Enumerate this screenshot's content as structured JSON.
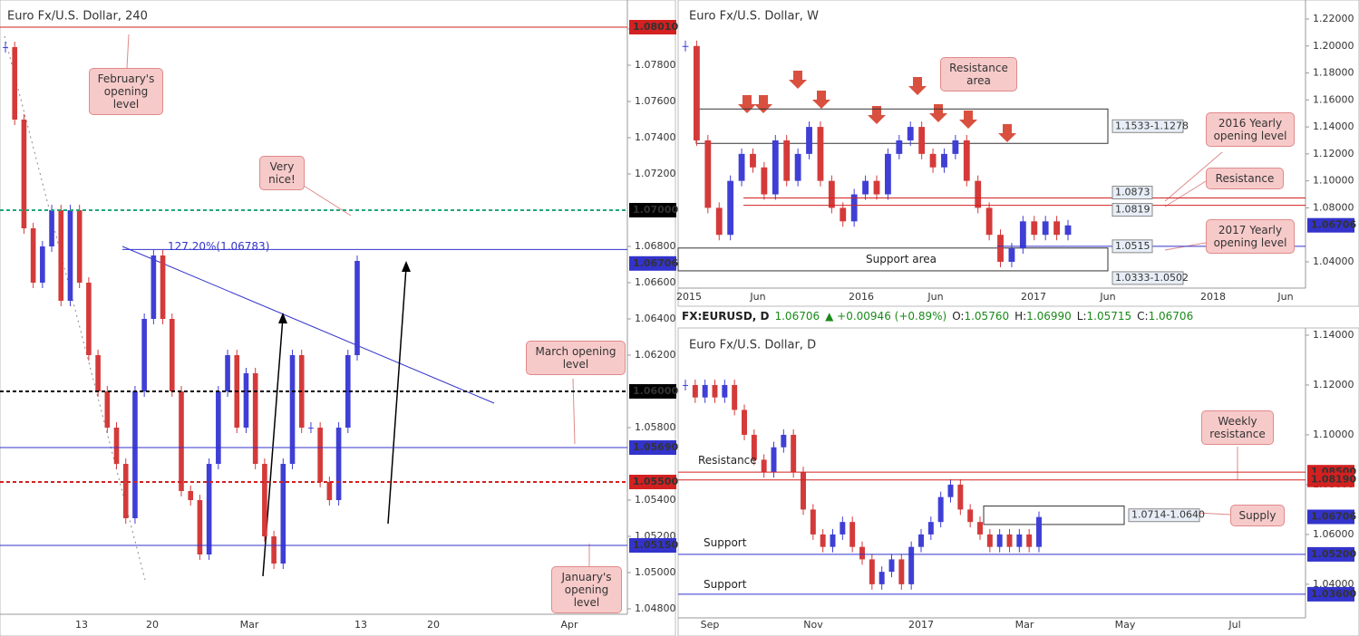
{
  "chart_data": [
    {
      "type": "candlestick",
      "title": "Euro Fx/U.S. Dollar, 240",
      "ylim": [
        1.0477,
        1.0816
      ],
      "yticks": [
        {
          "value": 1.08,
          "label": "1.08000"
        },
        {
          "value": 1.078,
          "label": "1.07800"
        },
        {
          "value": 1.076,
          "label": "1.07600"
        },
        {
          "value": 1.074,
          "label": "1.07400"
        },
        {
          "value": 1.072,
          "label": "1.07200"
        },
        {
          "value": 1.068,
          "label": "1.06800"
        },
        {
          "value": 1.066,
          "label": "1.06600"
        },
        {
          "value": 1.064,
          "label": "1.06400"
        },
        {
          "value": 1.062,
          "label": "1.06200"
        },
        {
          "value": 1.058,
          "label": "1.05800"
        },
        {
          "value": 1.054,
          "label": "1.05400"
        },
        {
          "value": 1.052,
          "label": "1.05200"
        },
        {
          "value": 1.05,
          "label": "1.05000"
        },
        {
          "value": 1.048,
          "label": "1.04800"
        }
      ],
      "xticks": [
        "13",
        "20",
        "Mar",
        "13",
        "20",
        "Apr"
      ],
      "up_color": "#3f3fd6",
      "down_color": "#d43a3a",
      "closes": [
        1.079,
        1.075,
        1.069,
        1.066,
        1.068,
        1.07,
        1.065,
        1.07,
        1.066,
        1.062,
        1.06,
        1.058,
        1.056,
        1.053,
        1.06,
        1.064,
        1.0675,
        1.064,
        1.06,
        1.0545,
        1.054,
        1.051,
        1.056,
        1.06,
        1.062,
        1.058,
        1.061,
        1.056,
        1.052,
        1.0505,
        1.056,
        1.062,
        1.058,
        1.058,
        1.055,
        1.054,
        1.058,
        1.062,
        1.0672
      ],
      "levels": [
        {
          "value": 1.0801,
          "label": "1.08010",
          "color": "#d32020",
          "style": "solid",
          "label_place": "axis"
        },
        {
          "value": 1.07,
          "label": "1.07000",
          "color": "#21a67a",
          "style": "dashed",
          "label_place": "axis",
          "box_color": "#000000"
        },
        {
          "value": 1.06783,
          "color": "#3333cc",
          "style": "solid"
        },
        {
          "value": 1.06706,
          "label": "1.06706",
          "color": "#3333cc",
          "style": "none",
          "label_place": "axis"
        },
        {
          "value": 1.06,
          "label": "1.06000",
          "color": "#000000",
          "style": "dashed",
          "label_place": "axis"
        },
        {
          "value": 1.0569,
          "label": "1.05690",
          "color": "#3333cc",
          "style": "solid",
          "label_place": "axis"
        },
        {
          "value": 1.055,
          "label": "1.05500",
          "color": "#d32020",
          "style": "dashed",
          "label_place": "axis"
        },
        {
          "value": 1.0515,
          "label": "1.05150",
          "color": "#3333cc",
          "style": "solid",
          "label_place": "axis"
        }
      ],
      "zones": [],
      "annotations": [
        "February's opening level",
        "Very nice!",
        "127.20%(1.06783)",
        "March opening level",
        "January's opening level"
      ]
    },
    {
      "type": "candlestick",
      "title": "Euro Fx/U.S. Dollar, W",
      "ylim": [
        1.0205,
        1.2341
      ],
      "yticks": [
        {
          "value": 1.22,
          "label": "1.22000"
        },
        {
          "value": 1.2,
          "label": "1.20000"
        },
        {
          "value": 1.18,
          "label": "1.18000"
        },
        {
          "value": 1.16,
          "label": "1.16000"
        },
        {
          "value": 1.14,
          "label": "1.14000"
        },
        {
          "value": 1.12,
          "label": "1.12000"
        },
        {
          "value": 1.1,
          "label": "1.10000"
        },
        {
          "value": 1.08,
          "label": "1.08000"
        },
        {
          "value": 1.04,
          "label": "1.04000"
        }
      ],
      "xticks": [
        "2015",
        "Jun",
        "2016",
        "Jun",
        "2017",
        "Jun",
        "2018",
        "Jun"
      ],
      "up_color": "#3f3fd6",
      "down_color": "#d43a3a",
      "closes": [
        1.2,
        1.13,
        1.08,
        1.06,
        1.1,
        1.12,
        1.11,
        1.09,
        1.13,
        1.1,
        1.12,
        1.14,
        1.1,
        1.08,
        1.07,
        1.09,
        1.1,
        1.09,
        1.12,
        1.13,
        1.14,
        1.12,
        1.11,
        1.12,
        1.13,
        1.1,
        1.08,
        1.06,
        1.04,
        1.05,
        1.07,
        1.06,
        1.07,
        1.06,
        1.067
      ],
      "levels": [
        {
          "value": 1.0873,
          "label": "1.0873",
          "color": "#d32020",
          "style": "solid",
          "label_place": "inline"
        },
        {
          "value": 1.0819,
          "label": "1.0819",
          "color": "#d32020",
          "style": "solid",
          "label_place": "inline"
        },
        {
          "value": 1.0515,
          "label": "1.0515",
          "color": "#3333cc",
          "style": "solid",
          "label_place": "inline"
        },
        {
          "value": 1.06706,
          "label": "1.06706",
          "color": "#3333cc",
          "style": "none",
          "label_place": "axis"
        }
      ],
      "zones": [
        {
          "values": [
            1.1533,
            1.1278
          ],
          "label": "1.1533-1.1278"
        },
        {
          "values": [
            1.0502,
            1.0333
          ],
          "label": "1.0333-1.0502"
        }
      ],
      "annotations": [
        "Resistance area",
        "2016 Yearly opening level",
        "Resistance",
        "2017 Yearly opening level",
        "Support area"
      ]
    },
    {
      "type": "candlestick",
      "title": "Euro Fx/U.S. Dollar, D",
      "ylim": [
        1.0265,
        1.1429
      ],
      "yticks": [
        {
          "value": 1.14,
          "label": "1.14000"
        },
        {
          "value": 1.12,
          "label": "1.12000"
        },
        {
          "value": 1.1,
          "label": "1.10000"
        },
        {
          "value": 1.08,
          "label": "1.08000"
        },
        {
          "value": 1.06,
          "label": "1.06000"
        },
        {
          "value": 1.04,
          "label": "1.04000"
        }
      ],
      "xticks": [
        "Sep",
        "Nov",
        "2017",
        "Mar",
        "May",
        "Jul"
      ],
      "up_color": "#3f3fd6",
      "down_color": "#d43a3a",
      "closes": [
        1.12,
        1.115,
        1.12,
        1.115,
        1.12,
        1.11,
        1.1,
        1.09,
        1.085,
        1.095,
        1.1,
        1.085,
        1.07,
        1.06,
        1.055,
        1.06,
        1.065,
        1.055,
        1.05,
        1.04,
        1.045,
        1.05,
        1.04,
        1.055,
        1.06,
        1.065,
        1.075,
        1.08,
        1.07,
        1.065,
        1.06,
        1.055,
        1.06,
        1.055,
        1.06,
        1.055,
        1.067
      ],
      "levels": [
        {
          "value": 1.085,
          "label": "1.08500",
          "color": "#d32020",
          "style": "solid",
          "label_place": "axis"
        },
        {
          "value": 1.0819,
          "label": "1.08190",
          "color": "#d32020",
          "style": "solid",
          "label_place": "axis"
        },
        {
          "value": 1.06706,
          "label": "1.06706",
          "color": "#3333cc",
          "style": "none",
          "label_place": "axis"
        },
        {
          "value": 1.052,
          "label": "1.05200",
          "color": "#3333cc",
          "style": "solid",
          "label_place": "axis"
        },
        {
          "value": 1.036,
          "label": "1.03600",
          "color": "#3333cc",
          "style": "solid",
          "label_place": "axis"
        }
      ],
      "zones": [
        {
          "values": [
            1.0714,
            1.064
          ],
          "label": "1.0714-1.0640"
        }
      ],
      "annotations": [
        "Resistance",
        "Support",
        "Support",
        "Weekly resistance",
        "Supply"
      ],
      "header": {
        "symbol": "FX:EURUSD, D",
        "last": "1.06706",
        "change": "▲ +0.00946 (+0.89%)",
        "ohlc": [
          {
            "label": "O:",
            "value": "1.05760"
          },
          {
            "label": "H:",
            "value": "1.06990"
          },
          {
            "label": "L:",
            "value": "1.05715"
          },
          {
            "label": "C:",
            "value": "1.06706"
          }
        ]
      }
    }
  ]
}
